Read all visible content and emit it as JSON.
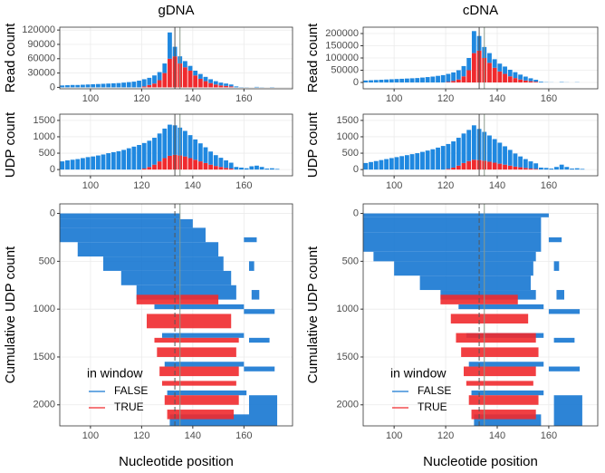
{
  "chart_data": [
    {
      "type": "bar",
      "title": "gDNA",
      "ylabel": "Read count",
      "x": [
        89,
        91,
        93,
        95,
        97,
        99,
        101,
        103,
        105,
        107,
        109,
        111,
        113,
        115,
        117,
        119,
        121,
        123,
        125,
        127,
        129,
        131,
        133,
        135,
        137,
        139,
        141,
        143,
        145,
        147,
        149,
        151,
        153,
        155,
        157,
        159,
        161,
        163,
        165,
        167,
        169,
        171,
        173
      ],
      "series": [
        {
          "name": "FALSE",
          "color": "#1f88e0",
          "values": [
            4000,
            4500,
            5000,
            5000,
            5500,
            6000,
            6500,
            7000,
            7500,
            8000,
            8500,
            9000,
            10000,
            11000,
            12000,
            14000,
            15000,
            15000,
            17000,
            17000,
            20000,
            55000,
            20000,
            15000,
            13000,
            10000,
            10000,
            10000,
            9000,
            8000,
            7000,
            6000,
            5000,
            4000,
            2000,
            500,
            300,
            0,
            1000,
            300,
            0,
            500,
            0
          ]
        },
        {
          "name": "TRUE",
          "color": "#f02a2e",
          "values": [
            0,
            0,
            0,
            0,
            0,
            0,
            0,
            0,
            0,
            0,
            0,
            0,
            0,
            0,
            0,
            0,
            2000,
            5000,
            8000,
            15000,
            30000,
            60000,
            65000,
            50000,
            42000,
            35000,
            25000,
            18000,
            13000,
            9000,
            6000,
            4000,
            3000,
            2000,
            0,
            0,
            0,
            0,
            0,
            0,
            0,
            0,
            0
          ]
        }
      ],
      "xlim": [
        88,
        179
      ],
      "xticks": [
        100,
        120,
        140,
        160
      ],
      "ylim": [
        -3000,
        126000
      ],
      "yticks": [
        0,
        30000,
        60000,
        90000,
        120000
      ],
      "vlines": [
        133,
        135
      ],
      "grid": true
    },
    {
      "type": "bar",
      "ylabel": "UDP count",
      "x": [
        89,
        91,
        93,
        95,
        97,
        99,
        101,
        103,
        105,
        107,
        109,
        111,
        113,
        115,
        117,
        119,
        121,
        123,
        125,
        127,
        129,
        131,
        133,
        135,
        137,
        139,
        141,
        143,
        145,
        147,
        149,
        151,
        153,
        155,
        157,
        159,
        161,
        163,
        165,
        167,
        169,
        171,
        173
      ],
      "series": [
        {
          "name": "FALSE",
          "color": "#1f88e0",
          "values": [
            250,
            280,
            300,
            320,
            350,
            380,
            400,
            430,
            460,
            500,
            530,
            560,
            600,
            650,
            700,
            750,
            780,
            800,
            820,
            850,
            900,
            950,
            900,
            850,
            780,
            700,
            620,
            550,
            480,
            400,
            330,
            280,
            230,
            180,
            80,
            60,
            40,
            100,
            120,
            80,
            30,
            40,
            20
          ]
        },
        {
          "name": "TRUE",
          "color": "#f02a2e",
          "values": [
            0,
            0,
            0,
            0,
            0,
            0,
            0,
            0,
            0,
            0,
            0,
            0,
            0,
            0,
            0,
            0,
            30,
            80,
            150,
            250,
            350,
            420,
            450,
            430,
            400,
            350,
            300,
            250,
            200,
            150,
            110,
            80,
            50,
            30,
            0,
            0,
            0,
            0,
            0,
            0,
            0,
            0,
            0
          ]
        }
      ],
      "xlim": [
        88,
        179
      ],
      "xticks": [
        100,
        120,
        140,
        160
      ],
      "ylim": [
        -190,
        1690
      ],
      "yticks": [
        0,
        500,
        1000,
        1500
      ],
      "vlines": [
        133,
        135
      ],
      "grid": true
    },
    {
      "type": "segment",
      "ylabel": "Cumulative UDP count",
      "xlabel": "Nucleotide position",
      "legend_title": "in window",
      "series": [
        {
          "name": "FALSE",
          "color": "#1677d2",
          "y_from": [
            0,
            60,
            150,
            300,
            450,
            600,
            750,
            950,
            1250,
            1550,
            1850,
            2100,
            250,
            500,
            800,
            1000,
            1300,
            1600,
            1900
          ],
          "y_to": [
            60,
            150,
            300,
            450,
            600,
            750,
            900,
            1000,
            1300,
            1600,
            1900,
            2250,
            300,
            600,
            900,
            1050,
            1350,
            1650,
            2250
          ],
          "start": [
            88,
            88,
            88,
            95,
            105,
            112,
            118,
            125,
            128,
            129,
            130,
            131,
            160,
            162,
            163,
            160,
            162,
            160,
            162
          ],
          "end": [
            135,
            140,
            145,
            150,
            152,
            155,
            157,
            160,
            160,
            160,
            161,
            162,
            165,
            164,
            166,
            172,
            170,
            172,
            173
          ]
        },
        {
          "name": "TRUE",
          "color": "#f02a2e",
          "y_from": [
            850,
            1050,
            1300,
            1400,
            1600,
            1750,
            1900,
            2050
          ],
          "y_to": [
            950,
            1200,
            1350,
            1500,
            1700,
            1800,
            2000,
            2150
          ],
          "start": [
            118,
            122,
            125,
            126,
            127,
            128,
            129,
            130
          ],
          "end": [
            150,
            155,
            158,
            157,
            158,
            157,
            158,
            156
          ]
        }
      ],
      "xlim": [
        88,
        179
      ],
      "xticks": [
        100,
        120,
        140,
        160
      ],
      "ylim": [
        2220,
        -100
      ],
      "yticks": [
        0,
        500,
        1000,
        1500,
        2000
      ],
      "vlines": [
        133,
        135
      ],
      "grid": true
    },
    {
      "type": "bar",
      "title": "cDNA",
      "ylabel": "Read count",
      "x": [
        89,
        91,
        93,
        95,
        97,
        99,
        101,
        103,
        105,
        107,
        109,
        111,
        113,
        115,
        117,
        119,
        121,
        123,
        125,
        127,
        129,
        131,
        133,
        135,
        137,
        139,
        141,
        143,
        145,
        147,
        149,
        151,
        153,
        155,
        157,
        159,
        161,
        163,
        165,
        167,
        169,
        171,
        173
      ],
      "series": [
        {
          "name": "FALSE",
          "color": "#1f88e0",
          "values": [
            8000,
            9000,
            10000,
            11000,
            12000,
            13000,
            14000,
            15000,
            16000,
            17000,
            18000,
            20000,
            22000,
            24000,
            27000,
            30000,
            33000,
            35000,
            38000,
            42000,
            50000,
            90000,
            60000,
            45000,
            40000,
            35000,
            32000,
            30000,
            27000,
            24000,
            20000,
            16000,
            12000,
            8000,
            3000,
            1000,
            500,
            0,
            1500,
            500,
            0,
            800,
            0
          ]
        },
        {
          "name": "TRUE",
          "color": "#f02a2e",
          "values": [
            0,
            0,
            0,
            0,
            0,
            0,
            0,
            0,
            0,
            0,
            0,
            0,
            0,
            0,
            0,
            0,
            2000,
            6000,
            12000,
            25000,
            50000,
            120000,
            130000,
            100000,
            80000,
            60000,
            45000,
            35000,
            25000,
            18000,
            12000,
            8000,
            5000,
            3000,
            0,
            0,
            0,
            0,
            0,
            0,
            0,
            0,
            0
          ]
        }
      ],
      "xlim": [
        88,
        179
      ],
      "xticks": [
        100,
        120,
        140,
        160
      ],
      "ylim": [
        -26000,
        226000
      ],
      "yticks": [
        0,
        50000,
        100000,
        150000,
        200000
      ],
      "vlines": [
        133,
        135
      ],
      "grid": true
    },
    {
      "type": "bar",
      "ylabel": "UDP count",
      "x": [
        89,
        91,
        93,
        95,
        97,
        99,
        101,
        103,
        105,
        107,
        109,
        111,
        113,
        115,
        117,
        119,
        121,
        123,
        125,
        127,
        129,
        131,
        133,
        135,
        137,
        139,
        141,
        143,
        145,
        147,
        149,
        151,
        153,
        155,
        157,
        159,
        161,
        163,
        165,
        167,
        169,
        171,
        173
      ],
      "series": [
        {
          "name": "FALSE",
          "color": "#1f88e0",
          "values": [
            200,
            230,
            260,
            290,
            320,
            350,
            380,
            410,
            440,
            470,
            500,
            540,
            580,
            620,
            670,
            720,
            760,
            800,
            850,
            900,
            950,
            1050,
            950,
            880,
            800,
            720,
            640,
            560,
            480,
            400,
            330,
            270,
            220,
            170,
            60,
            50,
            30,
            80,
            150,
            80,
            30,
            40,
            20
          ]
        },
        {
          "name": "TRUE",
          "color": "#f02a2e",
          "values": [
            0,
            0,
            0,
            0,
            0,
            0,
            0,
            0,
            0,
            0,
            0,
            0,
            0,
            0,
            0,
            0,
            20,
            60,
            120,
            200,
            260,
            300,
            290,
            270,
            240,
            210,
            180,
            150,
            120,
            90,
            70,
            50,
            30,
            20,
            0,
            0,
            0,
            0,
            0,
            0,
            0,
            0,
            0
          ]
        }
      ],
      "xlim": [
        88,
        179
      ],
      "xticks": [
        100,
        120,
        140,
        160
      ],
      "ylim": [
        -190,
        1690
      ],
      "yticks": [
        0,
        500,
        1000,
        1500
      ],
      "vlines": [
        133,
        135
      ],
      "grid": true
    },
    {
      "type": "segment",
      "ylabel": "Cumulative UDP count",
      "xlabel": "Nucleotide position",
      "legend_title": "in window",
      "series": [
        {
          "name": "FALSE",
          "color": "#1677d2",
          "y_from": [
            0,
            40,
            200,
            400,
            500,
            650,
            800,
            950,
            1250,
            1550,
            1850,
            2100,
            250,
            500,
            800,
            1000,
            1300,
            1600,
            1900
          ],
          "y_to": [
            40,
            200,
            400,
            500,
            650,
            800,
            900,
            1000,
            1300,
            1600,
            1900,
            2250,
            300,
            600,
            900,
            1050,
            1350,
            1650,
            2250
          ],
          "start": [
            88,
            88,
            88,
            92,
            100,
            110,
            118,
            125,
            128,
            129,
            130,
            131,
            160,
            162,
            163,
            160,
            162,
            160,
            162
          ],
          "end": [
            160,
            157,
            157,
            155,
            154,
            153,
            155,
            158,
            158,
            158,
            158,
            157,
            165,
            164,
            166,
            172,
            170,
            172,
            173
          ]
        },
        {
          "name": "TRUE",
          "color": "#f02a2e",
          "y_from": [
            850,
            1050,
            1250,
            1400,
            1600,
            1750,
            1900,
            2050
          ],
          "y_to": [
            950,
            1150,
            1350,
            1500,
            1700,
            1800,
            2000,
            2150
          ],
          "start": [
            118,
            122,
            124,
            126,
            127,
            128,
            129,
            130
          ],
          "end": [
            148,
            152,
            155,
            156,
            155,
            154,
            156,
            155
          ]
        }
      ],
      "xlim": [
        88,
        179
      ],
      "xticks": [
        100,
        120,
        140,
        160
      ],
      "ylim": [
        2220,
        -100
      ],
      "yticks": [
        0,
        500,
        1000,
        1500,
        2000
      ],
      "vlines": [
        133,
        135
      ],
      "grid": true
    }
  ]
}
